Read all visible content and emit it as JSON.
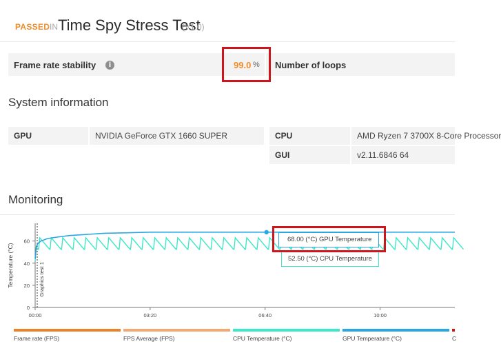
{
  "header": {
    "status": "PASSED",
    "in_text": "IN",
    "test_name": "Time Spy Stress Test",
    "version": "(V1.0)"
  },
  "stats": {
    "frame_rate_label": "Frame rate stability",
    "frame_rate_value": "99.0",
    "frame_rate_unit": "%",
    "loops_label": "Number of loops"
  },
  "system_info": {
    "title": "System information",
    "gpu_label": "GPU",
    "gpu_value": "NVIDIA GeForce GTX 1660 SUPER",
    "cpu_label": "CPU",
    "cpu_value": "AMD Ryzen 7 3700X 8-Core Processor",
    "gui_label": "GUI",
    "gui_value": "v2.11.6846 64"
  },
  "monitoring": {
    "title": "Monitoring",
    "tooltip_gpu": "68.00 (°C) GPU Temperature",
    "tooltip_cpu": "52.50 (°C) CPU Temperature",
    "legend": [
      {
        "label": "Frame rate (FPS)",
        "color": "#e8832a"
      },
      {
        "label": "FPS Average (FPS)",
        "color": "#f2a872"
      },
      {
        "label": "CPU Temperature (°C)",
        "color": "#3de8c8"
      },
      {
        "label": "GPU Temperature (°C)",
        "color": "#2aa7e0"
      },
      {
        "label": "C",
        "color": "#d0141b"
      }
    ]
  },
  "chart_data": {
    "type": "line",
    "ylabel": "Temperature (°C)",
    "marker_label": "Graphics test 1",
    "x_ticks": [
      "00:00",
      "03:20",
      "06:40",
      "10:00"
    ],
    "y_ticks": [
      "0",
      "20",
      "40",
      "60"
    ],
    "ylim": [
      0,
      76
    ],
    "xlim": [
      0,
      730
    ],
    "series": [
      {
        "name": "GPU Temperature (°C)",
        "color": "#2aa7e0",
        "x": [
          0,
          2,
          5,
          10,
          20,
          30,
          45,
          60,
          90,
          120,
          160,
          200,
          300,
          400,
          500,
          600,
          730
        ],
        "y": [
          44,
          55,
          58,
          60,
          62,
          63,
          64,
          65,
          66,
          67,
          67.5,
          68,
          68,
          68,
          68,
          68,
          68
        ]
      },
      {
        "name": "CPU Temperature (°C)",
        "color": "#3de8c8",
        "pattern": {
          "base": 52.5,
          "peak": 63,
          "period_s": 20
        }
      }
    ]
  }
}
